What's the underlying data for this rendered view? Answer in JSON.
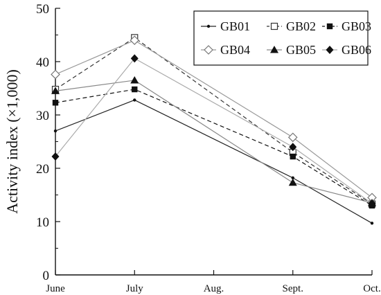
{
  "chart_data": {
    "type": "line",
    "title": "",
    "xlabel": "",
    "ylabel": "Activity index (×1,000)",
    "categories": [
      "June",
      "July",
      "Aug.",
      "Sept.",
      "Oct."
    ],
    "ylim": [
      0,
      50
    ],
    "yticks": [
      0,
      10,
      20,
      30,
      40,
      50
    ],
    "grid": false,
    "legend_position": "top-right",
    "series": [
      {
        "name": "GB01",
        "values": [
          27.0,
          32.8,
          null,
          18.2,
          9.7
        ],
        "marker": "small-dot",
        "line": "solid",
        "color": "#222222"
      },
      {
        "name": "GB02",
        "values": [
          34.8,
          44.5,
          null,
          23.0,
          13.3
        ],
        "marker": "open-square",
        "line": "dashed",
        "color": "#333333"
      },
      {
        "name": "GB03",
        "values": [
          32.3,
          34.8,
          null,
          22.2,
          13.0
        ],
        "marker": "filled-square",
        "line": "dashed",
        "color": "#111111"
      },
      {
        "name": "GB04",
        "values": [
          37.6,
          44.0,
          null,
          25.8,
          14.5
        ],
        "marker": "open-diamond",
        "line": "solid",
        "color": "#999999"
      },
      {
        "name": "GB05",
        "values": [
          34.5,
          36.5,
          null,
          17.3,
          13.5
        ],
        "marker": "filled-triangle",
        "line": "solid",
        "color": "#888888"
      },
      {
        "name": "GB06",
        "values": [
          22.2,
          40.6,
          null,
          24.0,
          13.4
        ],
        "marker": "filled-diamond",
        "line": "solid",
        "color": "#aaaaaa"
      }
    ]
  }
}
